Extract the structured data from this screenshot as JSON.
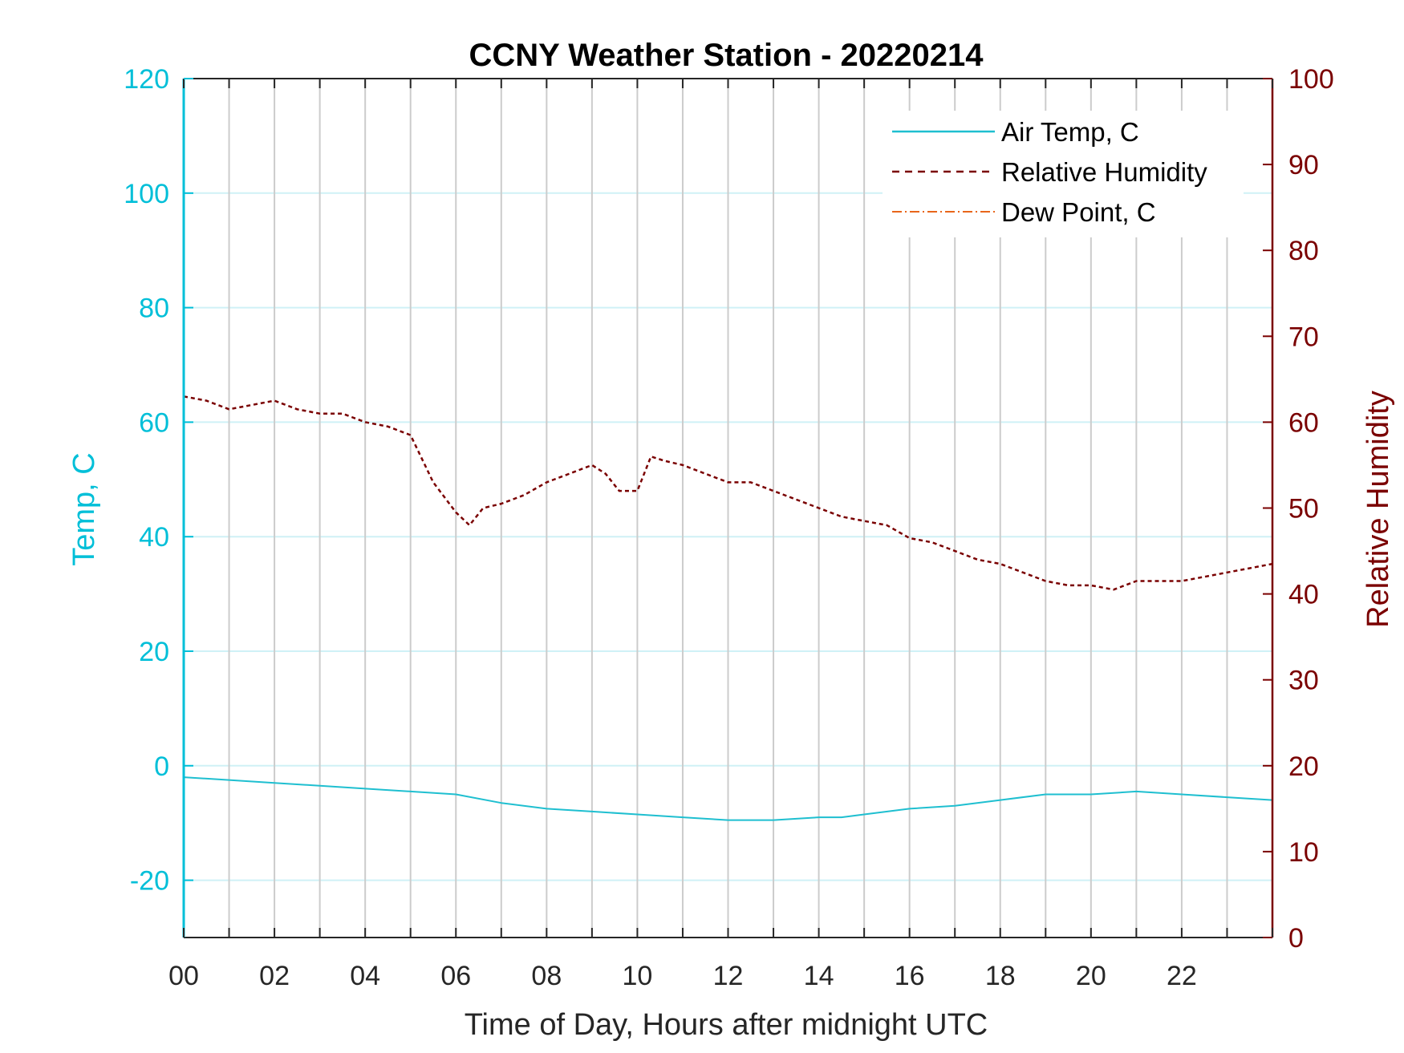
{
  "chart_data": {
    "type": "line",
    "title": "CCNY Weather Station - 20220214",
    "xlabel": "Time of Day, Hours after midnight UTC",
    "ylabel_left": "Temp, C",
    "ylabel_right": "Relative Humidity",
    "xlim": [
      0,
      24
    ],
    "ylim_left": [
      -30,
      120
    ],
    "ylim_right": [
      0,
      100
    ],
    "x_ticks": [
      0,
      2,
      4,
      6,
      8,
      10,
      12,
      14,
      16,
      18,
      20,
      22
    ],
    "x_tick_labels": [
      "00",
      "02",
      "04",
      "06",
      "08",
      "10",
      "12",
      "14",
      "16",
      "18",
      "20",
      "22"
    ],
    "y_left_ticks": [
      120,
      100,
      80,
      60,
      40,
      20,
      0,
      -20
    ],
    "y_left_tick_labels": [
      "120",
      "100",
      "80",
      "60",
      "40",
      "20",
      "0",
      "-20"
    ],
    "y_right_ticks": [
      100,
      90,
      80,
      70,
      60,
      50,
      40,
      30,
      20,
      10,
      0
    ],
    "y_right_tick_labels": [
      "100",
      "90",
      "80",
      "70",
      "60",
      "50",
      "40",
      "30",
      "20",
      "10",
      "0"
    ],
    "vertical_grid_hours": [
      1,
      2,
      3,
      4,
      5,
      6,
      7,
      8,
      9,
      10,
      11,
      12,
      13,
      14,
      15,
      16,
      17,
      18,
      19,
      20,
      21,
      22,
      23
    ],
    "grid": true,
    "legend_position": "top-right",
    "colors": {
      "left_axis": "#00BFD8",
      "right_axis": "#7A0000",
      "air_temp": "#1FBFD0",
      "humidity": "#7A0000",
      "dew_point": "#E8661A",
      "grid_vertical": "#CCCCCC",
      "grid_horizontal": "#CFF1F6"
    },
    "series": [
      {
        "name": "Air Temp, C",
        "axis": "left",
        "style": "solid",
        "x": [
          0,
          1,
          2,
          3,
          4,
          5,
          6,
          7,
          8,
          9,
          10,
          11,
          12,
          13,
          14,
          14.5,
          15,
          16,
          17,
          18,
          19,
          20,
          21,
          22,
          23,
          24
        ],
        "y": [
          -2,
          -2.5,
          -3,
          -3.5,
          -4,
          -4.5,
          -5,
          -6.5,
          -7.5,
          -8,
          -8.5,
          -9,
          -9.5,
          -9.5,
          -9,
          -9,
          -8.5,
          -7.5,
          -7,
          -6,
          -5,
          -5,
          -4.5,
          -5,
          -5.5,
          -6
        ]
      },
      {
        "name": "Relative Humidity",
        "axis": "right",
        "style": "dashed",
        "x": [
          0,
          0.5,
          1,
          1.5,
          2,
          2.5,
          3,
          3.5,
          4,
          4.5,
          5,
          5.5,
          6,
          6.3,
          6.6,
          7,
          7.5,
          8,
          8.5,
          9,
          9.3,
          9.6,
          10,
          10.3,
          10.6,
          11,
          11.5,
          12,
          12.5,
          13,
          13.5,
          14,
          14.5,
          15,
          15.5,
          16,
          16.5,
          17,
          17.5,
          18,
          18.5,
          19,
          19.5,
          20,
          20.5,
          21,
          21.5,
          22,
          22.5,
          23,
          23.5,
          24
        ],
        "y": [
          63,
          62.5,
          61.5,
          62,
          62.5,
          61.5,
          61,
          61,
          60,
          59.5,
          58.5,
          53,
          49.5,
          48,
          50,
          50.5,
          51.5,
          53,
          54,
          55,
          54,
          52,
          52,
          56,
          55.5,
          55,
          54,
          53,
          53,
          52,
          51,
          50,
          49,
          48.5,
          48,
          46.5,
          46,
          45,
          44,
          43.5,
          42.5,
          41.5,
          41,
          41,
          40.5,
          41.5,
          41.5,
          41.5,
          42,
          42.5,
          43,
          43.5
        ]
      },
      {
        "name": "Dew Point, C",
        "axis": "left",
        "style": "dash-dot",
        "x": [],
        "y": []
      }
    ]
  }
}
